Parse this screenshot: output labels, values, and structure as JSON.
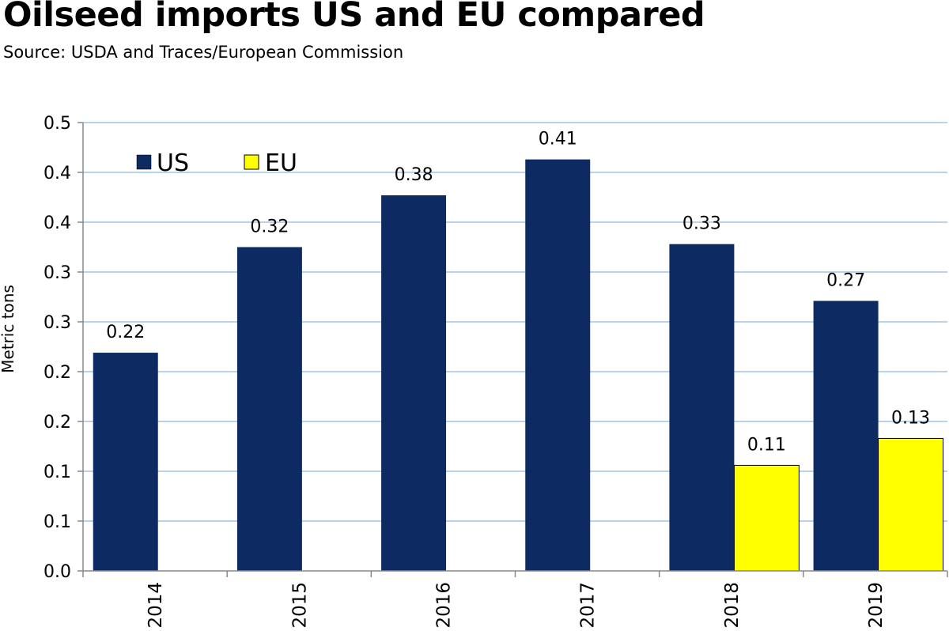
{
  "header": {
    "title": "Oilseed imports US and EU compared",
    "subtitle": "Source: USDA and Traces/European Commission"
  },
  "colors": {
    "us": "#0d2a63",
    "eu": "#ffff00",
    "grid": "#9dc3e6",
    "axis": "#888888"
  },
  "chart_data": {
    "type": "bar",
    "title": "Oilseed imports US and EU compared",
    "subtitle": "Source: USDA and Traces/European Commission",
    "xlabel": "",
    "ylabel": "Metric tons",
    "ylim": [
      0,
      0.45
    ],
    "y_tick_values": [
      0,
      0.05,
      0.1,
      0.15,
      0.2,
      0.25,
      0.3,
      0.35,
      0.4,
      0.45
    ],
    "y_tick_labels": [
      "0.0",
      "0.1",
      "0.1",
      "0.2",
      "0.2",
      "0.3",
      "0.3",
      "0.4",
      "0.4",
      "0.5"
    ],
    "grid": true,
    "legend_position": "top-left",
    "categories": [
      "2014",
      "2015",
      "2016",
      "2017",
      "2018",
      "2019"
    ],
    "series": [
      {
        "name": "US",
        "values": [
          0.219,
          0.325,
          0.377,
          0.413,
          0.328,
          0.271
        ],
        "labels": [
          "0.22",
          "0.32",
          "0.38",
          "0.41",
          "0.33",
          "0.27"
        ]
      },
      {
        "name": "EU",
        "values": [
          null,
          null,
          null,
          null,
          0.106,
          0.133
        ],
        "labels": [
          "",
          "",
          "",
          "",
          "0.11",
          "0.13"
        ]
      }
    ]
  }
}
